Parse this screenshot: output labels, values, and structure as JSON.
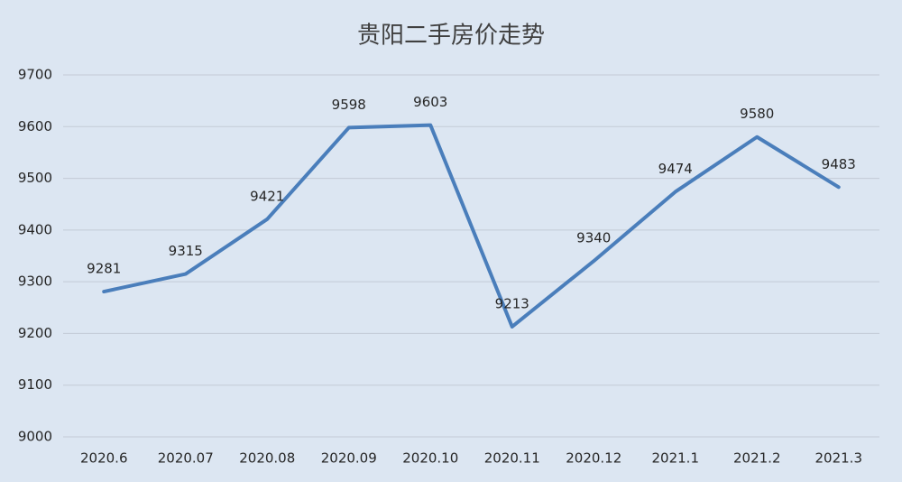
{
  "chart_data": {
    "type": "line",
    "title": "贵阳二手房价走势",
    "categories": [
      "2020.6",
      "2020.07",
      "2020.08",
      "2020.09",
      "2020.10",
      "2020.11",
      "2020.12",
      "2021.1",
      "2021.2",
      "2021.3"
    ],
    "values": [
      9281,
      9315,
      9421,
      9598,
      9603,
      9213,
      9340,
      9474,
      9580,
      9483
    ],
    "color": "#4a7ebb",
    "ylim": [
      9000,
      9700
    ],
    "yticks": [
      9000,
      9100,
      9200,
      9300,
      9400,
      9500,
      9600,
      9700
    ],
    "grid": true
  }
}
